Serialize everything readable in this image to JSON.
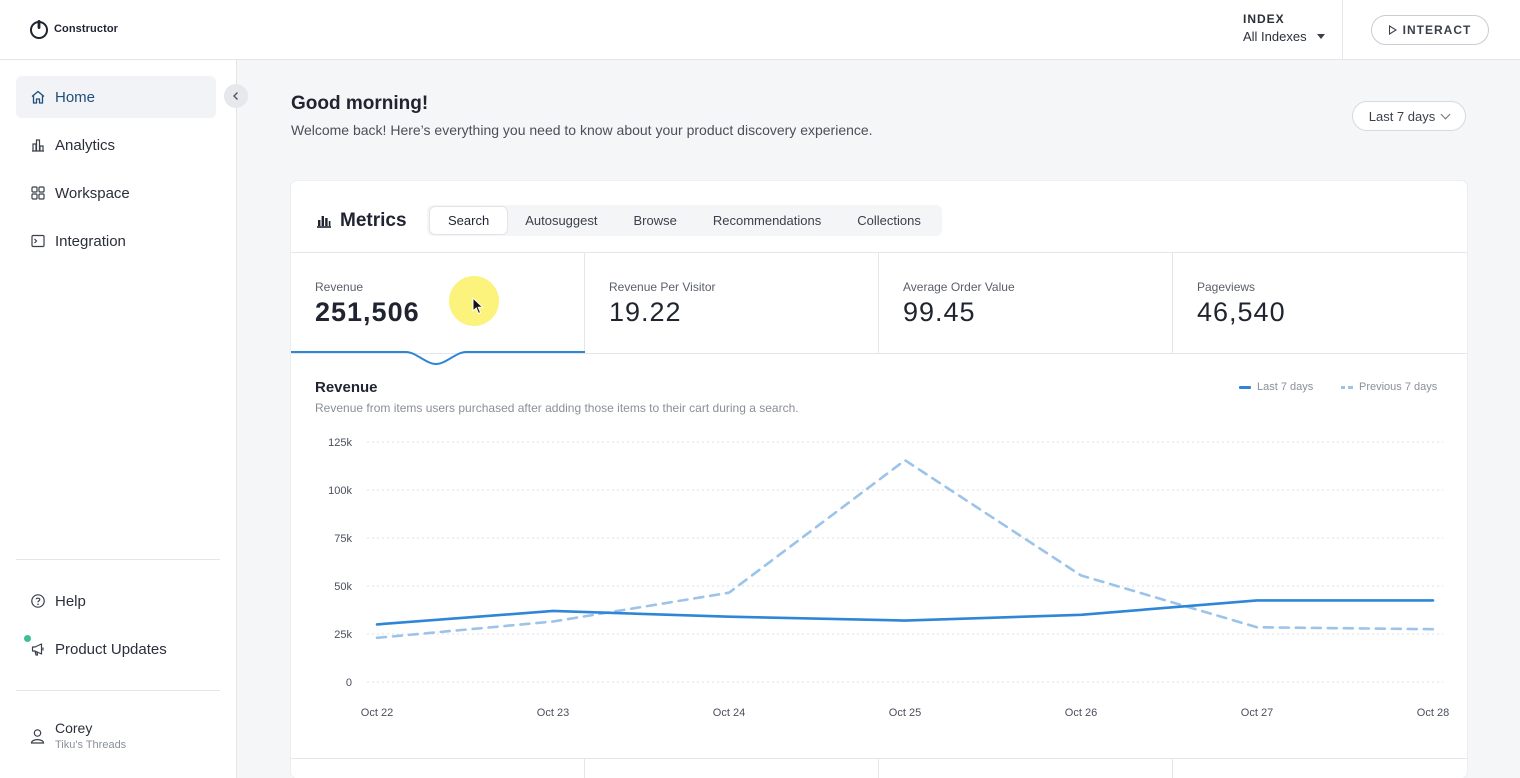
{
  "header": {
    "logo_text": "Constructor",
    "index_label": "INDEX",
    "index_value": "All Indexes",
    "interact_label": "INTERACT"
  },
  "sidebar": {
    "items": [
      {
        "label": "Home",
        "icon": "home-icon"
      },
      {
        "label": "Analytics",
        "icon": "analytics-icon"
      },
      {
        "label": "Workspace",
        "icon": "workspace-icon"
      },
      {
        "label": "Integration",
        "icon": "integration-icon"
      }
    ],
    "bottom_items": [
      {
        "label": "Help",
        "icon": "help-icon"
      },
      {
        "label": "Product Updates",
        "icon": "megaphone-icon"
      }
    ],
    "user": {
      "name": "Corey",
      "org": "Tiku's Threads"
    }
  },
  "main": {
    "greeting": "Good morning!",
    "welcome": "Welcome back! Here’s everything you need to know about your product discovery experience.",
    "date_range": "Last 7 days"
  },
  "metrics": {
    "title": "Metrics",
    "tabs": [
      "Search",
      "Autosuggest",
      "Browse",
      "Recommendations",
      "Collections"
    ],
    "active_tab": "Search",
    "kpis": [
      {
        "label": "Revenue",
        "value": "251,506"
      },
      {
        "label": "Revenue Per Visitor",
        "value": "19.22"
      },
      {
        "label": "Average Order Value",
        "value": "99.45"
      },
      {
        "label": "Pageviews",
        "value": "46,540"
      }
    ]
  },
  "colors": {
    "accent": "#2f86d6",
    "previous": "#9cc3ea",
    "green_dot": "#3fbf8f"
  },
  "chart_data": {
    "type": "line",
    "title": "Revenue",
    "subtitle": "Revenue from items users purchased after adding those items to their cart during a search.",
    "categories": [
      "Oct 22",
      "Oct 23",
      "Oct 24",
      "Oct 25",
      "Oct 26",
      "Oct 27",
      "Oct 28"
    ],
    "y_ticks": [
      "0",
      "25k",
      "50k",
      "75k",
      "100k",
      "125k"
    ],
    "ylim": [
      0,
      125000
    ],
    "series": [
      {
        "name": "Last 7 days",
        "style": "solid",
        "values": [
          30000,
          37000,
          34000,
          32000,
          35000,
          42500,
          42500
        ]
      },
      {
        "name": "Previous 7 days",
        "style": "dashed",
        "values": [
          23000,
          31500,
          46500,
          115500,
          55500,
          28500,
          27500
        ]
      }
    ],
    "grid": true,
    "legend": "top-right"
  }
}
